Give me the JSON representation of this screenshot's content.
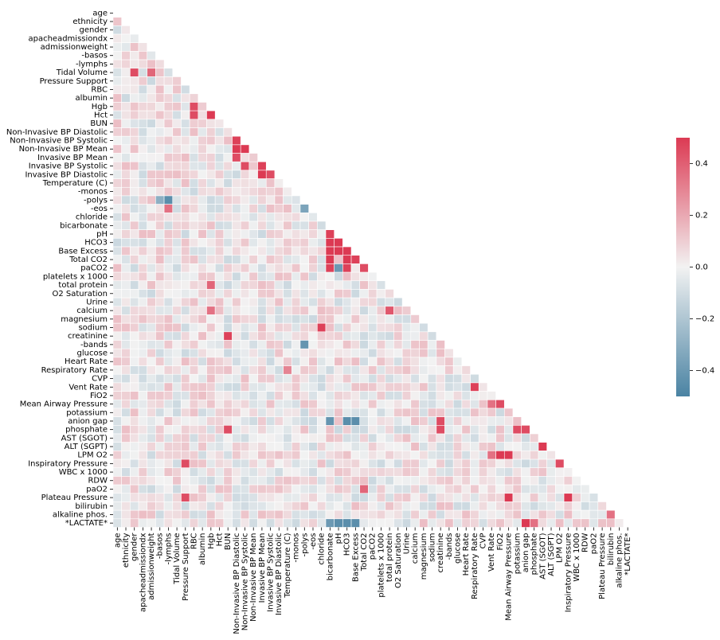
{
  "chart_data": {
    "type": "heatmap",
    "title": "",
    "xlabel": "",
    "ylabel": "",
    "mask": "upper-triangle",
    "variables": [
      "age",
      "ethnicity",
      "gender",
      "apacheadmissiondx",
      "admissionweight",
      "-basos",
      "-lymphs",
      "Tidal Volume",
      "Pressure Support",
      "RBC",
      "albumin",
      "Hgb",
      "Hct",
      "BUN",
      "Non-Invasive BP Diastolic",
      "Non-Invasive BP Systolic",
      "Non-Invasive BP Mean",
      "Invasive BP Mean",
      "Invasive BP Systolic",
      "Invasive BP Diastolic",
      "Temperature (C)",
      "-monos",
      "-polys",
      "-eos",
      "chloride",
      "bicarbonate",
      "pH",
      "HCO3",
      "Base Excess",
      "Total CO2",
      "paCO2",
      "platelets x 1000",
      "total protein",
      "O2 Saturation",
      "Urine",
      "calcium",
      "magnesium",
      "sodium",
      "creatinine",
      "-bands",
      "glucose",
      "Heart Rate",
      "Respiratory Rate",
      "CVP",
      "Vent Rate",
      "FiO2",
      "Mean Airway Pressure",
      "potassium",
      "anion gap",
      "phosphate",
      "AST (SGOT)",
      "ALT (SGPT)",
      "LPM O2",
      "Inspiratory Pressure",
      "WBC x 1000",
      "RDW",
      "paO2",
      "Plateau Pressure",
      "bilirubin",
      "alkaline phos.",
      "*LACTATE*"
    ],
    "highlighted_correlations": [
      {
        "row": "Tidal Volume",
        "col": "gender",
        "value": 0.45
      },
      {
        "row": "Tidal Volume",
        "col": "admissionweight",
        "value": 0.38
      },
      {
        "row": "Hgb",
        "col": "RBC",
        "value": 0.45
      },
      {
        "row": "Hct",
        "col": "RBC",
        "value": 0.45
      },
      {
        "row": "Hct",
        "col": "Hgb",
        "value": 0.5
      },
      {
        "row": "creatinine",
        "col": "BUN",
        "value": 0.48
      },
      {
        "row": "phosphate",
        "col": "BUN",
        "value": 0.45
      },
      {
        "row": "Non-Invasive BP Systolic",
        "col": "Non-Invasive BP Diastolic",
        "value": 0.48
      },
      {
        "row": "Non-Invasive BP Mean",
        "col": "Non-Invasive BP Diastolic",
        "value": 0.5
      },
      {
        "row": "Non-Invasive BP Mean",
        "col": "Non-Invasive BP Systolic",
        "value": 0.5
      },
      {
        "row": "Invasive BP Mean",
        "col": "Non-Invasive BP Diastolic",
        "value": 0.45
      },
      {
        "row": "Invasive BP Systolic",
        "col": "Non-Invasive BP Systolic",
        "value": 0.45
      },
      {
        "row": "Invasive BP Systolic",
        "col": "Invasive BP Mean",
        "value": 0.48
      },
      {
        "row": "Invasive BP Diastolic",
        "col": "Invasive BP Mean",
        "value": 0.5
      },
      {
        "row": "Invasive BP Diastolic",
        "col": "Invasive BP Systolic",
        "value": 0.45
      },
      {
        "row": "-polys",
        "col": "-lymphs",
        "value": -0.45
      },
      {
        "row": "-polys",
        "col": "-basos",
        "value": -0.3
      },
      {
        "row": "-eos",
        "col": "-polys",
        "value": -0.35
      },
      {
        "row": "-eos",
        "col": "-lymphs",
        "value": 0.35
      },
      {
        "row": "pH",
        "col": "bicarbonate",
        "value": 0.48
      },
      {
        "row": "HCO3",
        "col": "bicarbonate",
        "value": 0.5
      },
      {
        "row": "HCO3",
        "col": "pH",
        "value": 0.5
      },
      {
        "row": "Base Excess",
        "col": "bicarbonate",
        "value": 0.5
      },
      {
        "row": "Base Excess",
        "col": "pH",
        "value": 0.5
      },
      {
        "row": "Base Excess",
        "col": "HCO3",
        "value": 0.5
      },
      {
        "row": "Total CO2",
        "col": "bicarbonate",
        "value": 0.5
      },
      {
        "row": "Total CO2",
        "col": "HCO3",
        "value": 0.5
      },
      {
        "row": "Total CO2",
        "col": "Base Excess",
        "value": 0.48
      },
      {
        "row": "paCO2",
        "col": "bicarbonate",
        "value": 0.48
      },
      {
        "row": "paCO2",
        "col": "pH",
        "value": -0.4
      },
      {
        "row": "paCO2",
        "col": "HCO3",
        "value": 0.48
      },
      {
        "row": "paCO2",
        "col": "Total CO2",
        "value": 0.45
      },
      {
        "row": "sodium",
        "col": "chloride",
        "value": 0.48
      },
      {
        "row": "calcium",
        "col": "total protein",
        "value": 0.42
      },
      {
        "row": "-bands",
        "col": "-polys",
        "value": -0.42
      },
      {
        "row": "total protein",
        "col": "Hgb",
        "value": 0.38
      },
      {
        "row": "calcium",
        "col": "Hgb",
        "value": 0.35
      },
      {
        "row": "Vent Rate",
        "col": "Respiratory Rate",
        "value": 0.48
      },
      {
        "row": "Mean Airway Pressure",
        "col": "Vent Rate",
        "value": 0.35
      },
      {
        "row": "Mean Airway Pressure",
        "col": "FiO2",
        "value": 0.45
      },
      {
        "row": "anion gap",
        "col": "bicarbonate",
        "value": -0.42
      },
      {
        "row": "anion gap",
        "col": "HCO3",
        "value": -0.45
      },
      {
        "row": "anion gap",
        "col": "Base Excess",
        "value": -0.45
      },
      {
        "row": "anion gap",
        "col": "creatinine",
        "value": 0.45
      },
      {
        "row": "phosphate",
        "col": "creatinine",
        "value": 0.45
      },
      {
        "row": "phosphate",
        "col": "potassium",
        "value": 0.45
      },
      {
        "row": "phosphate",
        "col": "anion gap",
        "value": 0.45
      },
      {
        "row": "ALT (SGPT)",
        "col": "AST (SGOT)",
        "value": 0.5
      },
      {
        "row": "LPM O2",
        "col": "Vent Rate",
        "value": 0.35
      },
      {
        "row": "LPM O2",
        "col": "FiO2",
        "value": 0.5
      },
      {
        "row": "LPM O2",
        "col": "Mean Airway Pressure",
        "value": 0.5
      },
      {
        "row": "Inspiratory Pressure",
        "col": "Pressure Support",
        "value": 0.45
      },
      {
        "row": "Inspiratory Pressure",
        "col": "LPM O2",
        "value": 0.45
      },
      {
        "row": "paO2",
        "col": "Total CO2",
        "value": 0.38
      },
      {
        "row": "Plateau Pressure",
        "col": "Pressure Support",
        "value": 0.45
      },
      {
        "row": "Plateau Pressure",
        "col": "Mean Airway Pressure",
        "value": 0.5
      },
      {
        "row": "Plateau Pressure",
        "col": "Inspiratory Pressure",
        "value": 0.5
      },
      {
        "row": "alkaline phos.",
        "col": "bilirubin",
        "value": 0.35
      },
      {
        "row": "*LACTATE*",
        "col": "pH",
        "value": -0.45
      },
      {
        "row": "*LACTATE*",
        "col": "HCO3",
        "value": -0.45
      },
      {
        "row": "*LACTATE*",
        "col": "Base Excess",
        "value": -0.45
      },
      {
        "row": "*LACTATE*",
        "col": "anion gap",
        "value": 0.5
      },
      {
        "row": "*LACTATE*",
        "col": "bicarbonate",
        "value": -0.4
      },
      {
        "row": "*LACTATE*",
        "col": "phosphate",
        "value": 0.35
      },
      {
        "row": "Respiratory Rate",
        "col": "Temperature (C)",
        "value": 0.3
      }
    ],
    "colorbar": {
      "vmin": -0.5,
      "vmax": 0.5,
      "ticks": [
        0.4,
        0.2,
        0.0,
        -0.2,
        -0.4
      ],
      "tick_labels": [
        "0.4",
        "0.2",
        "0.0",
        "−0.2",
        "−0.4"
      ],
      "colors": {
        "negative": "#4a83a3",
        "center": "#f2f2f2",
        "positive": "#dc3a53"
      }
    }
  }
}
